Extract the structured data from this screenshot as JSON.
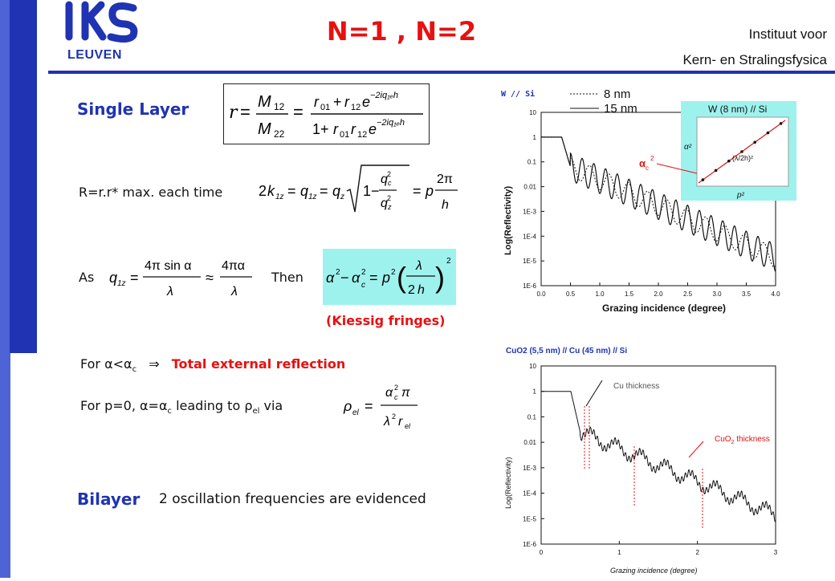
{
  "header": {
    "logo": "IKS",
    "city": "LEUVEN",
    "title": "N=1 , N=2",
    "institute_line1": "Instituut voor",
    "institute_line2": "Kern- en Stralingsfysica"
  },
  "left": {
    "single_layer": "Single Layer",
    "rr_text": "R=r.r* max. each time",
    "as_label": "As",
    "then_label": "Then",
    "kiessig": "(Kiessig fringes)",
    "for_alpha": "For α<α",
    "for_alpha_sub": "c",
    "arrow": "⇒",
    "total_ext": "Total external reflection",
    "for_p0": "For p=0, α=α",
    "for_p0_sub": "c",
    "leading_to": " leading to ρ",
    "leading_sub": "el",
    "via": " via",
    "bilayer": "Bilayer",
    "bilayer_text": "2 oscillation frequencies are evidenced"
  },
  "chart_data": [
    {
      "type": "line",
      "title": "W // Si",
      "xlabel": "Grazing incidence (degree)",
      "ylabel": "Log(Reflectivity)",
      "xlim": [
        0.0,
        4.0
      ],
      "ylim": [
        "1E-6",
        "10"
      ],
      "yscale": "log",
      "x_ticks": [
        "0.0",
        "0.5",
        "1.0",
        "1.5",
        "2.0",
        "2.5",
        "3.0",
        "3.5",
        "4.0"
      ],
      "y_ticks": [
        "10",
        "1",
        "0.1",
        "0.01",
        "1E-3",
        "1E-4",
        "1E-5",
        "1E-6"
      ],
      "legend": [
        "8 nm",
        "15 nm"
      ],
      "inset": {
        "title": "W (8 nm) // Si",
        "ylabel": "α²",
        "xlabel": "p²",
        "annotation": "(λ/2h)²",
        "marker_label": "α",
        "marker_sub": "c",
        "marker_sup": "2"
      }
    },
    {
      "type": "line",
      "title": "CuO2 (5,5 nm) // Cu (45 nm) // Si",
      "xlabel": "Grazing incidence (degree)",
      "ylabel": "Log(Reflectivity)",
      "xlim": [
        0,
        3
      ],
      "ylim": [
        "1E-6",
        "10"
      ],
      "yscale": "log",
      "x_ticks": [
        "0",
        "1",
        "2",
        "3"
      ],
      "y_ticks": [
        "10",
        "1",
        "0.1",
        "0.01",
        "1E-3",
        "1E-4",
        "1E-5",
        "1E-6"
      ],
      "annotations": [
        "Cu thickness",
        "CuO",
        "2",
        " thickness"
      ]
    }
  ]
}
